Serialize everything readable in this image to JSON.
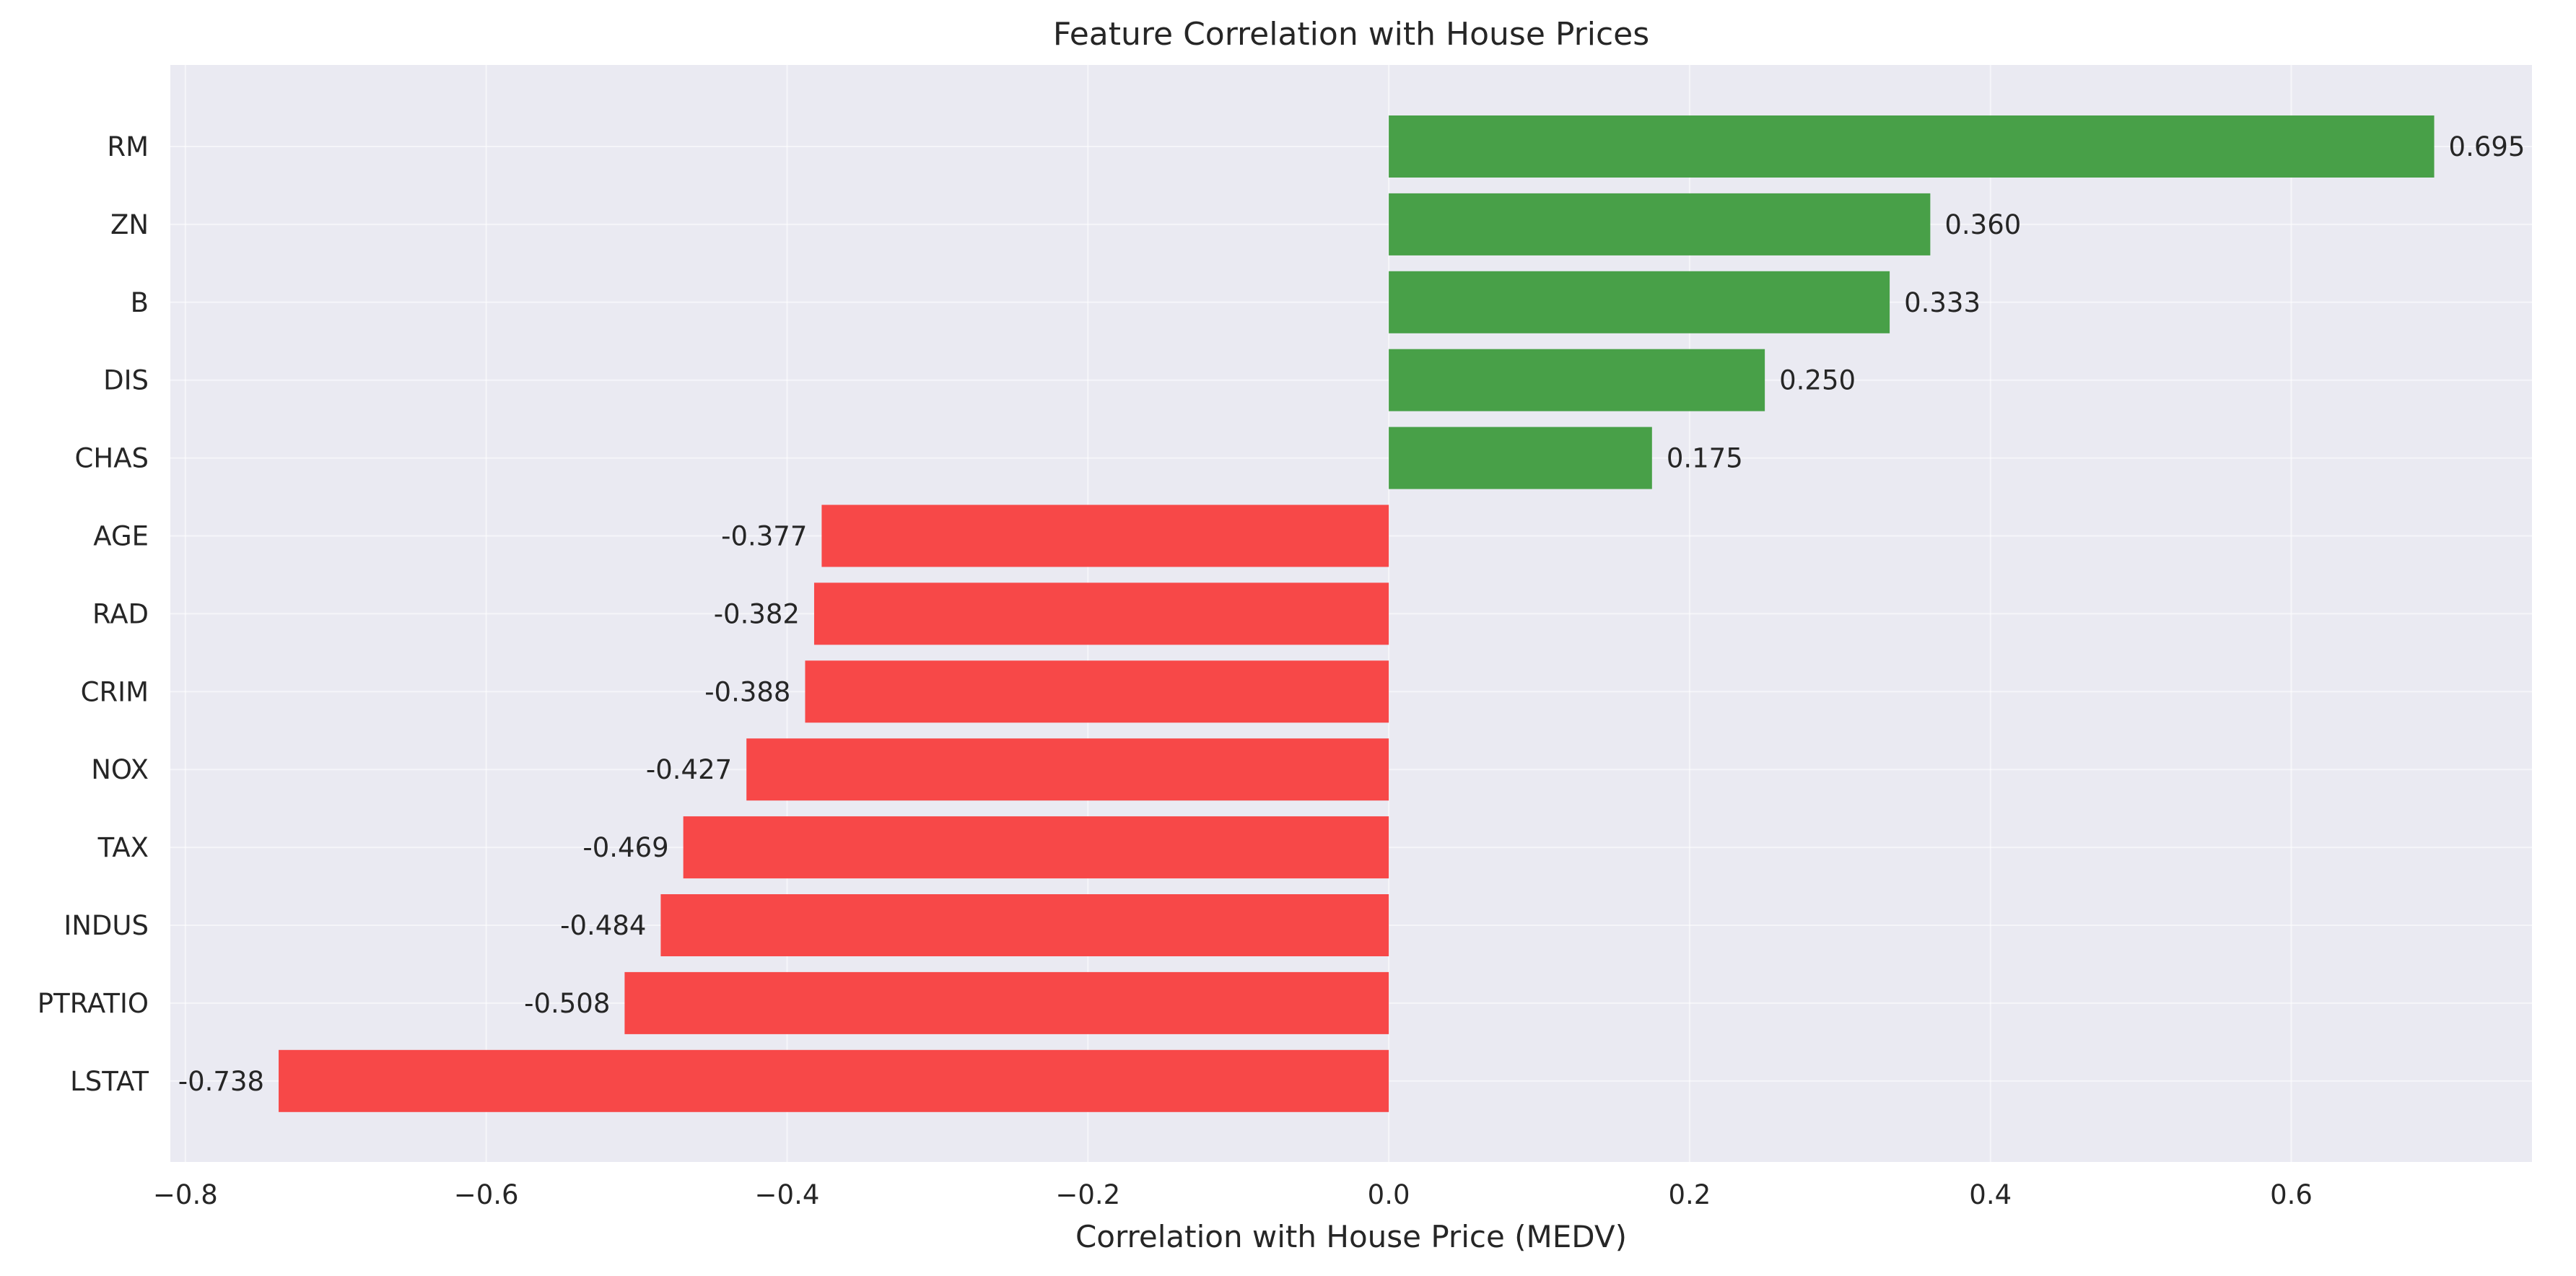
{
  "chart_data": {
    "type": "bar",
    "orientation": "horizontal",
    "title": "Feature Correlation with House Prices",
    "xlabel": "Correlation with House Price (MEDV)",
    "ylabel": "",
    "categories": [
      "RM",
      "ZN",
      "B",
      "DIS",
      "CHAS",
      "AGE",
      "RAD",
      "CRIM",
      "NOX",
      "TAX",
      "INDUS",
      "PTRATIO",
      "LSTAT"
    ],
    "values": [
      0.695,
      0.36,
      0.333,
      0.25,
      0.175,
      -0.377,
      -0.382,
      -0.388,
      -0.427,
      -0.469,
      -0.484,
      -0.508,
      -0.738
    ],
    "value_labels": [
      "0.695",
      "0.360",
      "0.333",
      "0.250",
      "0.175",
      "-0.377",
      "-0.382",
      "-0.388",
      "-0.427",
      "-0.469",
      "-0.484",
      "-0.508",
      "-0.738"
    ],
    "xlim": [
      -0.81,
      0.76
    ],
    "xticks": [
      -0.8,
      -0.6,
      -0.4,
      -0.2,
      0.0,
      0.2,
      0.4,
      0.6
    ],
    "xtick_labels": [
      "−0.8",
      "−0.6",
      "−0.4",
      "−0.2",
      "0.0",
      "0.2",
      "0.4",
      "0.6"
    ],
    "grid": true,
    "colors": {
      "positive": "#48a048",
      "negative": "#f74848",
      "plot_background": "#eaeaf2",
      "grid": "#ffffff",
      "text": "#262626"
    }
  }
}
